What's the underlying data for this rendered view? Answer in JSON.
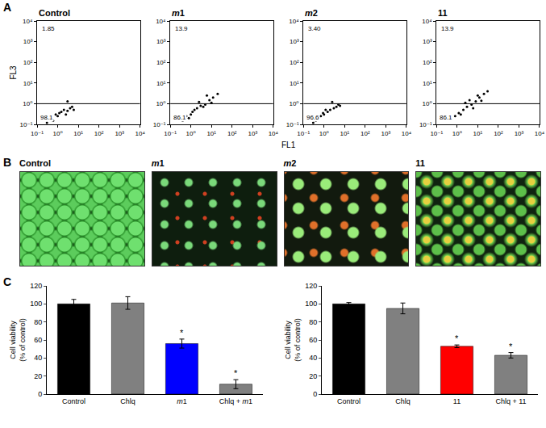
{
  "panel_letters": [
    "A",
    "B",
    "C"
  ],
  "flow_axes": {
    "x_label": "FL1",
    "y_label": "FL3"
  },
  "images": {
    "titles": [
      "Control",
      "m1",
      "m2",
      "11"
    ]
  },
  "chart_data": [
    {
      "type": "scatter",
      "title": "Control",
      "log": true,
      "grid": false,
      "color": "#000000",
      "marker": "circle",
      "x": [
        0.3,
        0.5,
        0.8,
        1,
        1.5,
        2,
        3,
        4,
        6,
        0.6,
        1.2,
        2.5,
        0.4,
        5,
        3
      ],
      "y": [
        0.12,
        0.2,
        0.3,
        0.25,
        0.4,
        0.5,
        0.45,
        0.6,
        0.5,
        0.15,
        0.35,
        0.3,
        0.18,
        0.7,
        1.3
      ],
      "gate_y": 1,
      "annotations": [
        "1.85",
        "98.1"
      ],
      "xlim": [
        0.1,
        10000
      ],
      "ylim": [
        0.1,
        10000
      ],
      "xticks": [
        {
          "value": 0.1,
          "label": "10⁻¹"
        },
        {
          "value": 1,
          "label": "10⁰"
        },
        {
          "value": 10,
          "label": "10¹"
        },
        {
          "value": 100,
          "label": "10²"
        },
        {
          "value": 1000,
          "label": "10³"
        },
        {
          "value": 10000,
          "label": "10⁴"
        }
      ],
      "yticks": [
        {
          "value": 0.1,
          "label": "10⁻¹"
        },
        {
          "value": 1,
          "label": "10⁰"
        },
        {
          "value": 10,
          "label": "10¹"
        },
        {
          "value": 100,
          "label": "10²"
        },
        {
          "value": 1000,
          "label": "10³"
        },
        {
          "value": 10000,
          "label": "10⁴"
        }
      ]
    },
    {
      "type": "scatter",
      "title": "m1",
      "log": true,
      "grid": false,
      "color": "#000000",
      "marker": "circle",
      "x": [
        0.4,
        0.6,
        1,
        1.5,
        2,
        3,
        5,
        8,
        12,
        20,
        0.8,
        2.5,
        4,
        6,
        10,
        1.2
      ],
      "y": [
        0.15,
        0.25,
        0.3,
        0.5,
        0.6,
        0.8,
        0.9,
        1.5,
        2,
        3,
        0.2,
        1.2,
        0.7,
        2.5,
        1.1,
        0.4
      ],
      "gate_y": 1,
      "annotations": [
        "13.9",
        "86.1"
      ],
      "xlim": [
        0.1,
        10000
      ],
      "ylim": [
        0.1,
        10000
      ],
      "xticks": [
        {
          "value": 0.1,
          "label": "10⁻¹"
        },
        {
          "value": 1,
          "label": "10⁰"
        },
        {
          "value": 10,
          "label": "10¹"
        },
        {
          "value": 100,
          "label": "10²"
        },
        {
          "value": 1000,
          "label": "10³"
        },
        {
          "value": 10000,
          "label": "10⁴"
        }
      ],
      "yticks": [
        {
          "value": 0.1,
          "label": "10⁻¹"
        },
        {
          "value": 1,
          "label": "10⁰"
        },
        {
          "value": 10,
          "label": "10¹"
        },
        {
          "value": 100,
          "label": "10²"
        },
        {
          "value": 1000,
          "label": "10³"
        },
        {
          "value": 10000,
          "label": "10⁴"
        }
      ]
    },
    {
      "type": "scatter",
      "title": "m2",
      "log": true,
      "grid": false,
      "color": "#000000",
      "marker": "circle",
      "x": [
        0.3,
        0.5,
        0.7,
        1,
        1.5,
        2,
        3,
        4,
        5,
        0.4,
        0.9,
        2.5,
        1.2,
        6
      ],
      "y": [
        0.12,
        0.2,
        0.25,
        0.3,
        0.4,
        0.5,
        0.6,
        0.7,
        0.9,
        0.15,
        0.35,
        1.2,
        0.5,
        0.8
      ],
      "gate_y": 1,
      "annotations": [
        "3.40",
        "96.6"
      ],
      "xlim": [
        0.1,
        10000
      ],
      "ylim": [
        0.1,
        10000
      ],
      "xticks": [
        {
          "value": 0.1,
          "label": "10⁻¹"
        },
        {
          "value": 1,
          "label": "10⁰"
        },
        {
          "value": 10,
          "label": "10¹"
        },
        {
          "value": 100,
          "label": "10²"
        },
        {
          "value": 1000,
          "label": "10³"
        },
        {
          "value": 10000,
          "label": "10⁴"
        }
      ],
      "yticks": [
        {
          "value": 0.1,
          "label": "10⁻¹"
        },
        {
          "value": 1,
          "label": "10⁰"
        },
        {
          "value": 10,
          "label": "10¹"
        },
        {
          "value": 100,
          "label": "10²"
        },
        {
          "value": 1000,
          "label": "10³"
        },
        {
          "value": 10000,
          "label": "10⁴"
        }
      ]
    },
    {
      "type": "scatter",
      "title": "11",
      "log": true,
      "grid": false,
      "color": "#000000",
      "marker": "circle",
      "x": [
        0.5,
        0.8,
        1.2,
        2,
        3,
        5,
        8,
        12,
        20,
        30,
        1.5,
        4,
        6,
        10,
        2.5,
        15
      ],
      "y": [
        0.18,
        0.25,
        0.35,
        0.5,
        0.7,
        0.9,
        1.3,
        2,
        3,
        4,
        0.3,
        1.5,
        0.6,
        2.5,
        1.1,
        1.4
      ],
      "gate_y": 1,
      "annotations": [
        "13.9",
        "86.1"
      ],
      "xlim": [
        0.1,
        10000
      ],
      "ylim": [
        0.1,
        10000
      ],
      "xticks": [
        {
          "value": 0.1,
          "label": "10⁻¹"
        },
        {
          "value": 1,
          "label": "10⁰"
        },
        {
          "value": 10,
          "label": "10¹"
        },
        {
          "value": 100,
          "label": "10²"
        },
        {
          "value": 1000,
          "label": "10³"
        },
        {
          "value": 10000,
          "label": "10⁴"
        }
      ],
      "yticks": [
        {
          "value": 0.1,
          "label": "10⁻¹"
        },
        {
          "value": 1,
          "label": "10⁰"
        },
        {
          "value": 10,
          "label": "10¹"
        },
        {
          "value": 100,
          "label": "10²"
        },
        {
          "value": 1000,
          "label": "10³"
        },
        {
          "value": 10000,
          "label": "10⁴"
        }
      ]
    },
    {
      "type": "bar",
      "grid": false,
      "y_label": "Cell viability (% of control)",
      "categories": [
        "Control",
        "Chlq",
        "m1",
        "Chlq + m1"
      ],
      "values": [
        100,
        101,
        56,
        11
      ],
      "errors": [
        5,
        7,
        5,
        5
      ],
      "colors": [
        "#000000",
        "#808080",
        "#0000ff",
        "#808080"
      ],
      "annotations": [
        {
          "x": "m1",
          "text": "*"
        },
        {
          "x": "Chlq + m1",
          "text": "*"
        }
      ],
      "ylim": [
        0,
        120
      ],
      "yticks": [
        0,
        20,
        40,
        60,
        80,
        100,
        120
      ]
    },
    {
      "type": "bar",
      "grid": false,
      "y_label": "Cell viability (% of control)",
      "categories": [
        "Control",
        "Chlq",
        "11",
        "Chlq + 11"
      ],
      "values": [
        100,
        95,
        53,
        43
      ],
      "errors": [
        1.5,
        6,
        1.5,
        3
      ],
      "colors": [
        "#000000",
        "#808080",
        "#ff0000",
        "#808080"
      ],
      "annotations": [
        {
          "x": "11",
          "text": "*"
        },
        {
          "x": "Chlq + 11",
          "text": "*"
        }
      ],
      "ylim": [
        0,
        120
      ],
      "yticks": [
        0,
        20,
        40,
        60,
        80,
        100,
        120
      ]
    }
  ]
}
